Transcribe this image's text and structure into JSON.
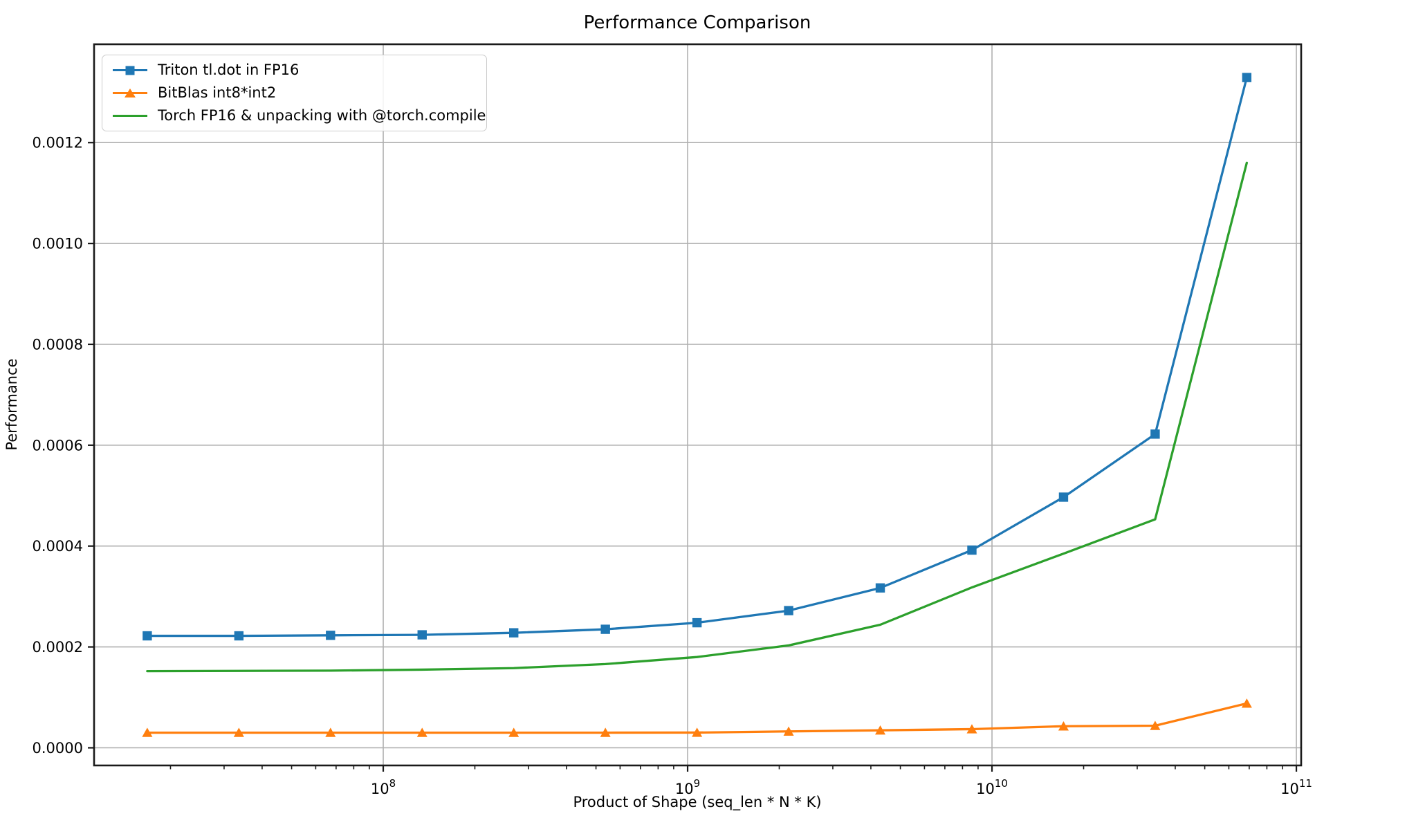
{
  "chart_data": {
    "type": "line",
    "title": "Performance Comparison",
    "xlabel": "Product of Shape (seq_len * N * K)",
    "ylabel": "Performance",
    "x_scale": "log",
    "grid": true,
    "legend_position": "upper left",
    "background_color": "#ffffff",
    "grid_color": "#b0b0b0",
    "spine_color": "#1a1a1a",
    "xlim": [
      11220000,
      103700000000
    ],
    "ylim": [
      -3.5e-05,
      0.001395
    ],
    "x_ticks": [
      {
        "value": 100000000,
        "base": "10",
        "exponent": "8"
      },
      {
        "value": 1000000000,
        "base": "10",
        "exponent": "9"
      },
      {
        "value": 10000000000,
        "base": "10",
        "exponent": "10"
      },
      {
        "value": 100000000000,
        "base": "10",
        "exponent": "11"
      }
    ],
    "y_ticks": [
      {
        "value": 0.0,
        "label": "0.0000"
      },
      {
        "value": 0.0002,
        "label": "0.0002"
      },
      {
        "value": 0.0004,
        "label": "0.0004"
      },
      {
        "value": 0.0006,
        "label": "0.0006"
      },
      {
        "value": 0.0008,
        "label": "0.0008"
      },
      {
        "value": 0.001,
        "label": "0.0010"
      },
      {
        "value": 0.0012,
        "label": "0.0012"
      }
    ],
    "x": [
      16777216,
      33554432,
      67108864,
      134217728,
      268435456,
      536870912,
      1073741824,
      2147483648,
      4294967296,
      8589934592,
      17179869184,
      34359738368,
      68719476736
    ],
    "series": [
      {
        "name": "Triton tl.dot in FP16",
        "color": "#1f77b4",
        "marker": "square",
        "values": [
          0.000222,
          0.000222,
          0.000223,
          0.000224,
          0.000228,
          0.000235,
          0.000248,
          0.000272,
          0.000317,
          0.000392,
          0.000497,
          0.000622,
          0.001329
        ]
      },
      {
        "name": "BitBlas int8*int2",
        "color": "#ff7f0e",
        "marker": "triangle",
        "values": [
          3e-05,
          3e-05,
          3e-05,
          3e-05,
          3e-05,
          3e-05,
          3.02e-05,
          3.25e-05,
          3.47e-05,
          3.7e-05,
          4.28e-05,
          4.38e-05,
          8.8e-05
        ]
      },
      {
        "name": "Torch FP16 & unpacking with @torch.compile",
        "color": "#2ca02c",
        "marker": "none",
        "values": [
          0.000152,
          0.0001525,
          0.000153,
          0.000155,
          0.000158,
          0.000166,
          0.00018,
          0.000203,
          0.000244,
          0.000318,
          0.000385,
          0.000453,
          0.00116
        ]
      }
    ]
  }
}
